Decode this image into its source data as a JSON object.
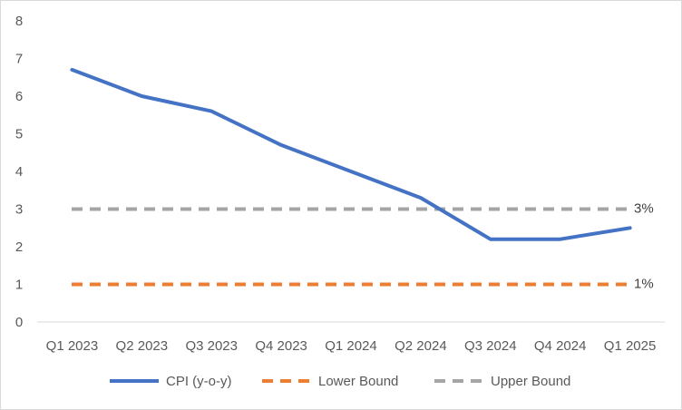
{
  "chart_data": {
    "type": "line",
    "title": "",
    "xlabel": "",
    "ylabel": "",
    "categories": [
      "Q1 2023",
      "Q2 2023",
      "Q3 2023",
      "Q4 2023",
      "Q1 2024",
      "Q2 2024",
      "Q3 2024",
      "Q4 2024",
      "Q1 2025"
    ],
    "ylim": [
      0,
      8
    ],
    "yticks": [
      0,
      1,
      2,
      3,
      4,
      5,
      6,
      7,
      8
    ],
    "grid": false,
    "legend_position": "bottom",
    "series": [
      {
        "name": "CPI (y-o-y)",
        "style": "solid",
        "color": "#4472C4",
        "values": [
          6.7,
          6.0,
          5.6,
          4.7,
          4.0,
          3.3,
          2.2,
          2.2,
          2.5
        ]
      },
      {
        "name": "Lower Bound",
        "style": "dashed",
        "color": "#ED7D31",
        "values": [
          1,
          1,
          1,
          1,
          1,
          1,
          1,
          1,
          1
        ],
        "end_label": "1%"
      },
      {
        "name": "Upper Bound",
        "style": "dashed",
        "color": "#A5A5A5",
        "values": [
          3,
          3,
          3,
          3,
          3,
          3,
          3,
          3,
          3
        ],
        "end_label": "3%"
      }
    ]
  }
}
